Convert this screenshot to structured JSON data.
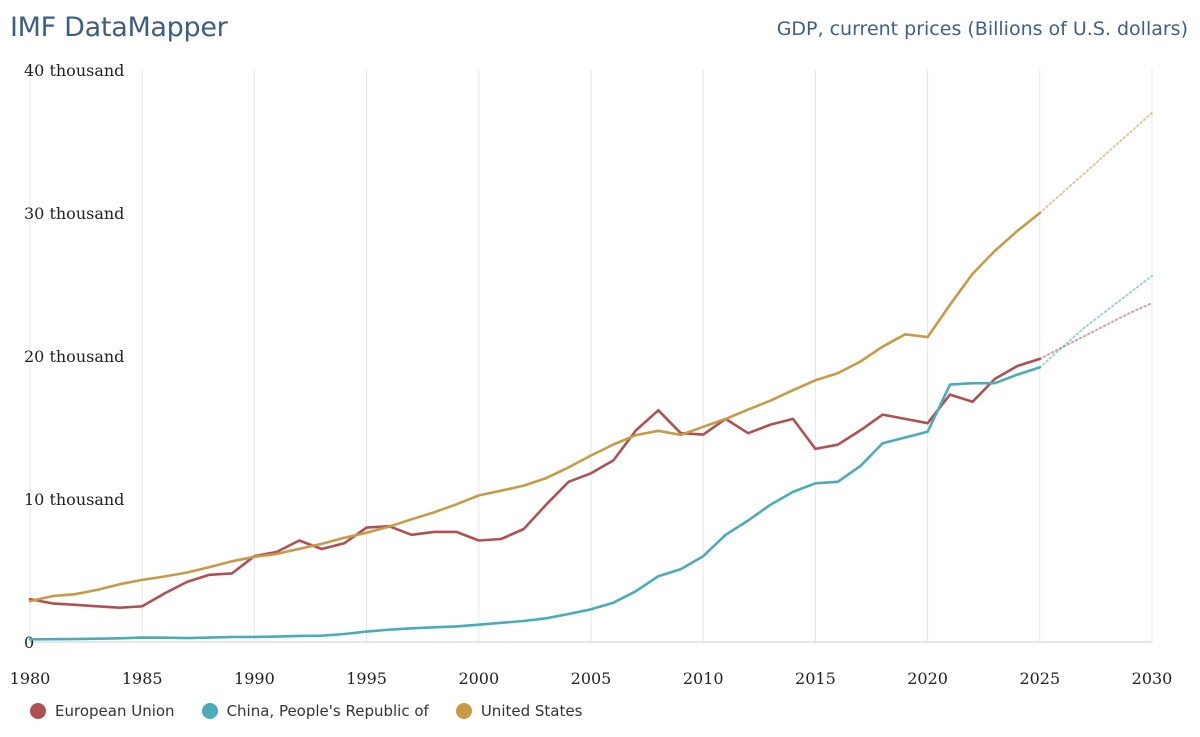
{
  "header": {
    "app_title": "IMF DataMapper",
    "indicator_title": "GDP, current prices (Billions of U.S. dollars)"
  },
  "colors": {
    "european_union": "#b05050",
    "china": "#4aabbb",
    "united_states": "#c99a45",
    "grid": "#e6e6e6",
    "axis_text": "#222222"
  },
  "chart_data": {
    "type": "line",
    "title": "GDP, current prices (Billions of U.S. dollars)",
    "xlabel": "",
    "ylabel": "",
    "xlim": [
      1980,
      2030
    ],
    "ylim": [
      0,
      40000
    ],
    "x_ticks": [
      1980,
      1985,
      1990,
      1995,
      2000,
      2005,
      2010,
      2015,
      2020,
      2025,
      2030
    ],
    "y_ticks": [
      0,
      10000,
      20000,
      30000,
      40000
    ],
    "y_tick_labels": [
      "0",
      "10 thousand",
      "20 thousand",
      "30 thousand",
      "40 thousand"
    ],
    "grid": "vertical",
    "legend_position": "bottom-left",
    "projection_start": 2025,
    "x": [
      1980,
      1981,
      1982,
      1983,
      1984,
      1985,
      1986,
      1987,
      1988,
      1989,
      1990,
      1991,
      1992,
      1993,
      1994,
      1995,
      1996,
      1997,
      1998,
      1999,
      2000,
      2001,
      2002,
      2003,
      2004,
      2005,
      2006,
      2007,
      2008,
      2009,
      2010,
      2011,
      2012,
      2013,
      2014,
      2015,
      2016,
      2017,
      2018,
      2019,
      2020,
      2021,
      2022,
      2023,
      2024,
      2025,
      2026,
      2027,
      2028,
      2029,
      2030
    ],
    "series": [
      {
        "name": "European Union",
        "color": "#b05050",
        "values": [
          3000,
          2700,
          2600,
          2500,
          2400,
          2500,
          3400,
          4200,
          4700,
          4800,
          6000,
          6300,
          7100,
          6500,
          6900,
          8000,
          8100,
          7500,
          7700,
          7700,
          7100,
          7200,
          7900,
          9600,
          11200,
          11800,
          12700,
          14800,
          16200,
          14600,
          14500,
          15600,
          14600,
          15200,
          15600,
          13500,
          13800,
          14800,
          15900,
          15600,
          15300,
          17300,
          16800,
          18400,
          19300,
          19800,
          20600,
          21400,
          22200,
          23000,
          23700
        ]
      },
      {
        "name": "China, People's Republic of",
        "color": "#4aabbb",
        "values": [
          190,
          195,
          205,
          230,
          260,
          310,
          300,
          270,
          310,
          350,
          360,
          380,
          430,
          440,
          560,
          730,
          860,
          960,
          1030,
          1090,
          1210,
          1340,
          1470,
          1660,
          1960,
          2290,
          2750,
          3550,
          4600,
          5100,
          6000,
          7500,
          8500,
          9600,
          10500,
          11100,
          11200,
          12300,
          13900,
          14300,
          14700,
          18000,
          18100,
          18100,
          18700,
          19200,
          20600,
          22000,
          23200,
          24400,
          25600
        ]
      },
      {
        "name": "United States",
        "color": "#c99a45",
        "values": [
          2860,
          3210,
          3340,
          3640,
          4040,
          4340,
          4580,
          4860,
          5240,
          5640,
          5960,
          6160,
          6520,
          6860,
          7290,
          7640,
          8070,
          8580,
          9060,
          9630,
          10250,
          10580,
          10940,
          11460,
          12210,
          13040,
          13810,
          14470,
          14770,
          14480,
          15050,
          15600,
          16250,
          16880,
          17610,
          18300,
          18800,
          19610,
          20660,
          21520,
          21320,
          23590,
          25740,
          27360,
          28750,
          30000,
          31400,
          32800,
          34200,
          35600,
          37000
        ]
      }
    ]
  },
  "legend": {
    "items": [
      {
        "label": "European Union",
        "color": "#b05050"
      },
      {
        "label": "China, People's Republic of",
        "color": "#4aabbb"
      },
      {
        "label": "United States",
        "color": "#c99a45"
      }
    ]
  }
}
